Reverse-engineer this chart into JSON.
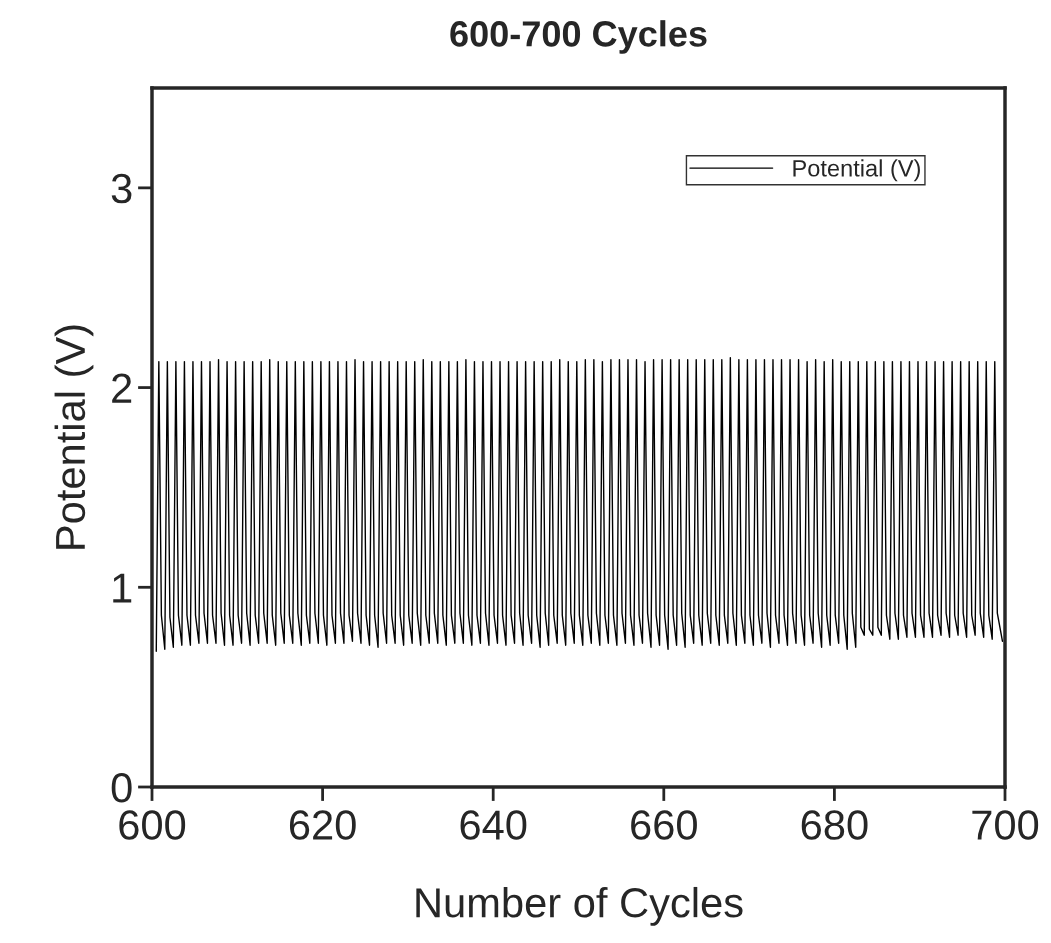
{
  "chart_data": {
    "type": "line",
    "title": "600-700 Cycles",
    "xlabel": "Number of Cycles",
    "ylabel": "Potential (V)",
    "xlim": [
      600,
      700
    ],
    "xticks": [
      600,
      620,
      640,
      660,
      680,
      700
    ],
    "ylim": [
      0,
      3.5
    ],
    "yticks": [
      0,
      1,
      2,
      3
    ],
    "grid": false,
    "legend": "top right",
    "marker": "none",
    "line_style": "solid",
    "series": [
      {
        "name": "Potential (V)",
        "color": "#000000",
        "x": [
          600.5,
          600.8,
          601.1,
          601.5,
          601.8,
          602.1,
          602.5,
          602.8,
          603.1,
          603.5,
          603.8,
          604.1,
          604.5,
          604.8,
          605.1,
          605.5,
          605.8,
          606.1,
          606.5,
          606.8,
          607.1,
          607.5,
          607.8,
          608.1,
          608.5,
          608.8,
          609.1,
          609.5,
          609.8,
          610.1,
          610.5,
          610.8,
          611.1,
          611.5,
          611.8,
          612.1,
          612.5,
          612.8,
          613.1,
          613.5,
          613.8,
          614.1,
          614.5,
          614.8,
          615.1,
          615.5,
          615.8,
          616.1,
          616.5,
          616.8,
          617.1,
          617.5,
          617.8,
          618.1,
          618.5,
          618.8,
          619.1,
          619.5,
          619.8,
          620.1,
          620.5,
          620.8,
          621.1,
          621.5,
          621.8,
          622.1,
          622.5,
          622.8,
          623.1,
          623.5,
          623.8,
          624.1,
          624.5,
          624.8,
          625.1,
          625.5,
          625.8,
          626.1,
          626.5,
          626.8,
          627.1,
          627.5,
          627.8,
          628.1,
          628.5,
          628.8,
          629.1,
          629.5,
          629.8,
          630.1,
          630.5,
          630.8,
          631.1,
          631.5,
          631.8,
          632.1,
          632.5,
          632.8,
          633.1,
          633.5,
          633.8,
          634.1,
          634.5,
          634.8,
          635.1,
          635.5,
          635.8,
          636.1,
          636.5,
          636.8,
          637.1,
          637.5,
          637.8,
          638.1,
          638.5,
          638.8,
          639.1,
          639.5,
          639.8,
          640.1,
          640.5,
          640.8,
          641.1,
          641.5,
          641.8,
          642.1,
          642.5,
          642.8,
          643.1,
          643.5,
          643.8,
          644.1,
          644.5,
          644.8,
          645.1,
          645.5,
          645.8,
          646.1,
          646.5,
          646.8,
          647.1,
          647.5,
          647.8,
          648.1,
          648.5,
          648.8,
          649.1,
          649.5,
          649.8,
          650.1,
          650.5,
          650.8,
          651.1,
          651.5,
          651.8,
          652.1,
          652.5,
          652.8,
          653.1,
          653.5,
          653.8,
          654.1,
          654.5,
          654.8,
          655.1,
          655.5,
          655.8,
          656.1,
          656.5,
          656.8,
          657.1,
          657.5,
          657.8,
          658.1,
          658.5,
          658.8,
          659.1,
          659.5,
          659.8,
          660.1,
          660.5,
          660.8,
          661.1,
          661.5,
          661.8,
          662.1,
          662.5,
          662.8,
          663.1,
          663.5,
          663.8,
          664.1,
          664.5,
          664.8,
          665.1,
          665.5,
          665.8,
          666.1,
          666.5,
          666.8,
          667.1,
          667.5,
          667.8,
          668.1,
          668.5,
          668.8,
          669.1,
          669.5,
          669.8,
          670.1,
          670.5,
          670.8,
          671.1,
          671.5,
          671.8,
          672.1,
          672.5,
          672.8,
          673.1,
          673.5,
          673.8,
          674.1,
          674.5,
          674.8,
          675.1,
          675.5,
          675.8,
          676.1,
          676.5,
          676.8,
          677.1,
          677.5,
          677.8,
          678.1,
          678.5,
          678.8,
          679.1,
          679.5,
          679.8,
          680.1,
          680.5,
          680.8,
          681.1,
          681.5,
          681.8,
          682.1,
          682.5,
          682.8,
          683.1,
          683.5,
          683.8,
          684.1,
          684.5,
          684.8,
          685.1,
          685.5,
          685.8,
          686.1,
          686.5,
          686.8,
          687.1,
          687.5,
          687.8,
          688.1,
          688.5,
          688.8,
          689.1,
          689.5,
          689.8,
          690.1,
          690.5,
          690.8,
          691.1,
          691.5,
          691.8,
          692.1,
          692.5,
          692.8,
          693.1,
          693.5,
          693.8,
          694.1,
          694.5,
          694.8,
          695.1,
          695.5,
          695.8,
          696.1,
          696.5,
          696.8,
          697.1,
          697.5,
          697.8,
          698.1,
          698.5,
          698.8,
          699.1,
          699.7
        ],
        "values": [
          0.68,
          2.13,
          0.86,
          0.69,
          2.13,
          0.85,
          0.7,
          2.13,
          0.86,
          0.71,
          2.13,
          0.86,
          0.71,
          2.13,
          0.86,
          0.72,
          2.13,
          0.87,
          0.72,
          2.13,
          0.86,
          0.72,
          2.14,
          0.87,
          0.71,
          2.13,
          0.86,
          0.71,
          2.13,
          0.86,
          0.72,
          2.13,
          0.87,
          0.71,
          2.13,
          0.86,
          0.72,
          2.13,
          0.87,
          0.72,
          2.14,
          0.86,
          0.71,
          2.13,
          0.87,
          0.72,
          2.13,
          0.86,
          0.72,
          2.13,
          0.87,
          0.71,
          2.13,
          0.86,
          0.72,
          2.13,
          0.87,
          0.72,
          2.13,
          0.86,
          0.71,
          2.13,
          0.86,
          0.72,
          2.13,
          0.87,
          0.72,
          2.13,
          0.86,
          0.73,
          2.14,
          0.87,
          0.72,
          2.13,
          0.86,
          0.71,
          2.13,
          0.86,
          0.7,
          2.13,
          0.87,
          0.72,
          2.13,
          0.86,
          0.72,
          2.13,
          0.86,
          0.71,
          2.13,
          0.86,
          0.72,
          2.13,
          0.87,
          0.71,
          2.14,
          0.86,
          0.72,
          2.13,
          0.87,
          0.72,
          2.13,
          0.86,
          0.71,
          2.13,
          0.86,
          0.72,
          2.13,
          0.87,
          0.72,
          2.14,
          0.86,
          0.71,
          2.13,
          0.86,
          0.72,
          2.13,
          0.87,
          0.71,
          2.13,
          0.86,
          0.72,
          2.13,
          0.86,
          0.71,
          2.13,
          0.86,
          0.72,
          2.13,
          0.87,
          0.71,
          2.13,
          0.86,
          0.72,
          2.13,
          0.86,
          0.7,
          2.13,
          0.87,
          0.71,
          2.13,
          0.86,
          0.72,
          2.14,
          0.86,
          0.71,
          2.13,
          0.87,
          0.72,
          2.13,
          0.86,
          0.71,
          2.14,
          0.86,
          0.72,
          2.14,
          0.87,
          0.71,
          2.13,
          0.86,
          0.72,
          2.14,
          0.86,
          0.71,
          2.14,
          0.87,
          0.72,
          2.14,
          0.86,
          0.71,
          2.14,
          0.86,
          0.72,
          2.13,
          0.87,
          0.7,
          2.14,
          0.86,
          0.71,
          2.14,
          0.86,
          0.69,
          2.14,
          0.86,
          0.71,
          2.14,
          0.87,
          0.7,
          2.14,
          0.86,
          0.72,
          2.14,
          0.86,
          0.71,
          2.14,
          0.87,
          0.72,
          2.14,
          0.86,
          0.71,
          2.14,
          0.86,
          0.72,
          2.15,
          0.87,
          0.71,
          2.14,
          0.86,
          0.72,
          2.14,
          0.86,
          0.71,
          2.14,
          0.86,
          0.72,
          2.14,
          0.87,
          0.7,
          2.14,
          0.86,
          0.72,
          2.14,
          0.86,
          0.71,
          2.14,
          0.87,
          0.72,
          2.14,
          0.86,
          0.71,
          2.13,
          0.86,
          0.72,
          2.14,
          0.87,
          0.7,
          2.13,
          0.86,
          0.71,
          2.14,
          0.86,
          0.72,
          2.13,
          0.86,
          0.69,
          2.13,
          0.87,
          0.7,
          2.13,
          0.8,
          0.76,
          2.13,
          0.79,
          0.76,
          2.13,
          0.8,
          0.76,
          2.13,
          0.86,
          0.74,
          2.13,
          0.87,
          0.74,
          2.13,
          0.86,
          0.75,
          2.13,
          0.87,
          0.75,
          2.13,
          0.86,
          0.75,
          2.13,
          0.87,
          0.75,
          2.13,
          0.86,
          0.76,
          2.13,
          0.87,
          0.75,
          2.13,
          0.86,
          0.76,
          2.13,
          0.87,
          0.75,
          2.13,
          0.86,
          0.76,
          2.13,
          0.87,
          0.75,
          2.13,
          0.86,
          0.74,
          2.13,
          0.87,
          0.73
        ]
      }
    ]
  }
}
